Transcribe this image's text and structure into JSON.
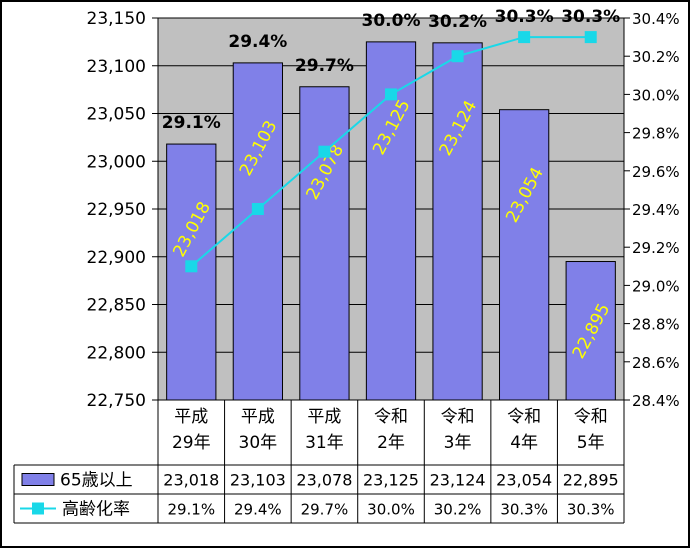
{
  "chart_data": {
    "type": "bar",
    "categories": [
      [
        "平成",
        "29年"
      ],
      [
        "平成",
        "30年"
      ],
      [
        "平成",
        "31年"
      ],
      [
        "令和",
        "2年"
      ],
      [
        "令和",
        "3年"
      ],
      [
        "令和",
        "4年"
      ],
      [
        "令和",
        "5年"
      ]
    ],
    "series": [
      {
        "name": "65歳以上",
        "type": "bar",
        "axis": "left",
        "values": [
          23018,
          23103,
          23078,
          23125,
          23124,
          23054,
          22895
        ],
        "labels": [
          "23,018",
          "23,103",
          "23,078",
          "23,125",
          "23,124",
          "23,054",
          "22,895"
        ],
        "color": "#8080e8"
      },
      {
        "name": "高齢化率",
        "type": "line",
        "axis": "right",
        "values": [
          29.1,
          29.4,
          29.7,
          30.0,
          30.2,
          30.3,
          30.3
        ],
        "labels": [
          "29.1%",
          "29.4%",
          "29.7%",
          "30.0%",
          "30.2%",
          "30.3%",
          "30.3%"
        ],
        "color": "#19d8e8"
      }
    ],
    "ylim_left": [
      22750,
      23150
    ],
    "ylim_right": [
      28.4,
      30.4
    ],
    "yticks_left": [
      "23,150",
      "23,100",
      "23,050",
      "23,000",
      "22,950",
      "22,900",
      "22,850",
      "22,800",
      "22,750"
    ],
    "yticks_right": [
      "30.4%",
      "30.2%",
      "30.0%",
      "29.8%",
      "29.6%",
      "29.4%",
      "29.2%",
      "29.0%",
      "28.8%",
      "28.6%",
      "28.4%"
    ],
    "grid": true,
    "data_table": true,
    "colors": {
      "plot_bg": "#c0c0c0",
      "bar_label": "#ffff00"
    }
  }
}
